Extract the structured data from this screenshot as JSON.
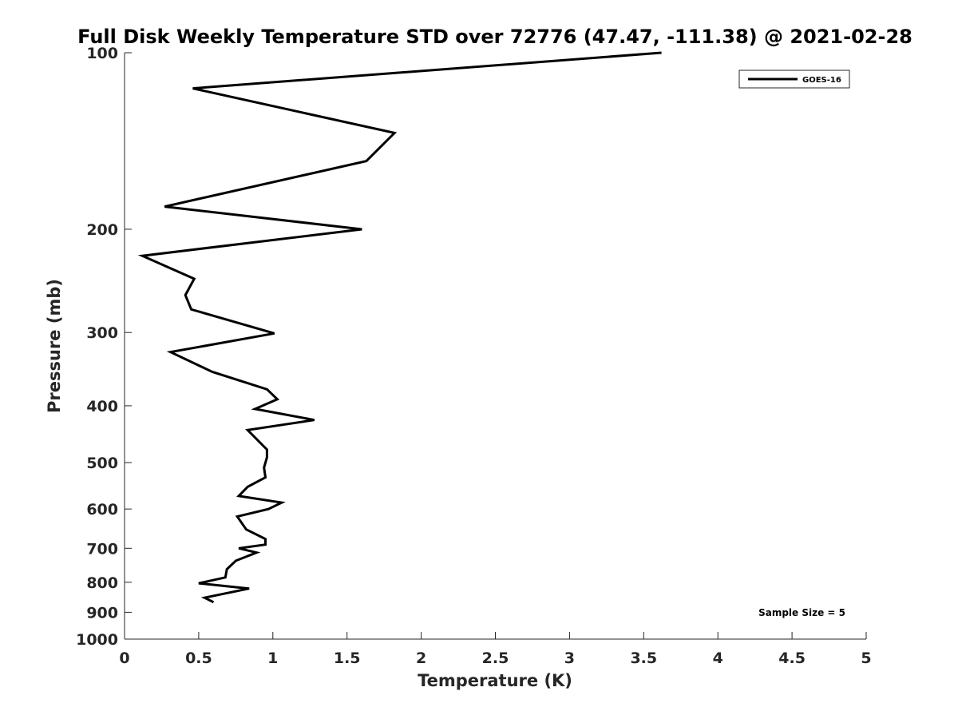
{
  "chart_data": {
    "type": "line",
    "title": "Full Disk Weekly Temperature STD over 72776 (47.47, -111.38) @ 2021-02-28",
    "xlabel": "Temperature (K)",
    "ylabel": "Pressure (mb)",
    "xlim": [
      0,
      5
    ],
    "ylim": [
      100,
      1000
    ],
    "y_scale": "log",
    "y_reversed": true,
    "x_ticks": [
      "0",
      "0.5",
      "1",
      "1.5",
      "2",
      "2.5",
      "3",
      "3.5",
      "4",
      "4.5",
      "5"
    ],
    "x_tick_values": [
      0,
      0.5,
      1,
      1.5,
      2,
      2.5,
      3,
      3.5,
      4,
      4.5,
      5
    ],
    "y_ticks": [
      "100",
      "200",
      "300",
      "400",
      "500",
      "600",
      "700",
      "800",
      "900",
      "1000"
    ],
    "y_tick_values": [
      100,
      200,
      300,
      400,
      500,
      600,
      700,
      800,
      900,
      1000
    ],
    "grid": false,
    "legend_position": "top-right",
    "annotation": "Sample Size = 5",
    "series": [
      {
        "name": "GOES-16",
        "color": "#000000",
        "x": [
          3.62,
          0.46,
          1.82,
          1.63,
          0.27,
          1.6,
          0.12,
          0.47,
          0.41,
          0.45,
          1.01,
          0.31,
          0.59,
          0.96,
          1.03,
          0.88,
          1.28,
          0.83,
          0.96,
          0.96,
          0.94,
          0.95,
          0.83,
          0.77,
          1.06,
          0.97,
          0.76,
          0.82,
          0.95,
          0.95,
          0.77,
          0.89,
          0.75,
          0.69,
          0.68,
          0.5,
          0.84,
          0.54,
          0.6
        ],
        "y": [
          100,
          115,
          137,
          153,
          183,
          200,
          222,
          243,
          259,
          274,
          301,
          324,
          350,
          375,
          390,
          405,
          423,
          440,
          475,
          490,
          510,
          530,
          550,
          570,
          585,
          600,
          618,
          650,
          675,
          690,
          700,
          712,
          735,
          760,
          785,
          803,
          820,
          850,
          865
        ]
      }
    ]
  }
}
